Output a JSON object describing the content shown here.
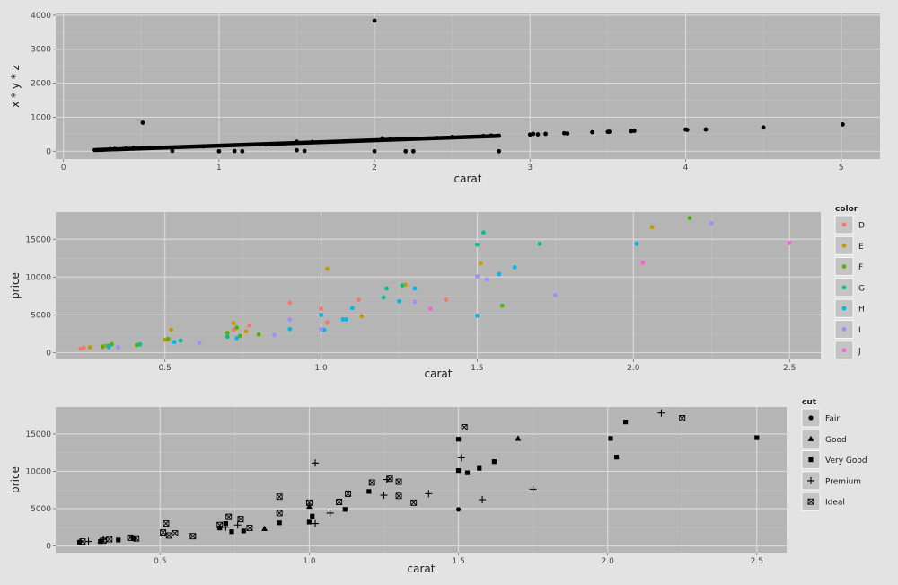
{
  "chart_data": [
    {
      "type": "scatter",
      "xlabel": "carat",
      "ylabel": "x * y * z",
      "xlim": [
        -0.05,
        5.25
      ],
      "ylim": [
        -230,
        4050
      ],
      "xticks": [
        0,
        1,
        2,
        3,
        4,
        5
      ],
      "yticks": [
        0,
        1000,
        2000,
        3000,
        4000
      ],
      "grid": true,
      "point_color": "#000000",
      "trend": {
        "x": [
          0.2,
          2.8
        ],
        "y": [
          35,
          450
        ]
      },
      "points": [
        [
          0.51,
          840
        ],
        [
          2.0,
          3840
        ],
        [
          5.01,
          790
        ],
        [
          0.7,
          10
        ],
        [
          1.0,
          0
        ],
        [
          1.1,
          5
        ],
        [
          1.15,
          0
        ],
        [
          1.5,
          30
        ],
        [
          1.55,
          10
        ],
        [
          2.0,
          0
        ],
        [
          2.2,
          0
        ],
        [
          2.25,
          0
        ],
        [
          2.8,
          0
        ],
        [
          1.5,
          280
        ],
        [
          1.6,
          270
        ],
        [
          2.05,
          380
        ],
        [
          2.1,
          350
        ],
        [
          2.4,
          390
        ],
        [
          2.5,
          420
        ],
        [
          2.7,
          450
        ],
        [
          2.75,
          460
        ],
        [
          2.8,
          455
        ],
        [
          3.0,
          490
        ],
        [
          3.02,
          510
        ],
        [
          3.05,
          495
        ],
        [
          3.1,
          510
        ],
        [
          3.22,
          530
        ],
        [
          3.24,
          520
        ],
        [
          3.4,
          560
        ],
        [
          3.5,
          570
        ],
        [
          3.51,
          575
        ],
        [
          3.65,
          590
        ],
        [
          3.67,
          600
        ],
        [
          4.0,
          640
        ],
        [
          4.01,
          630
        ],
        [
          4.13,
          640
        ],
        [
          4.5,
          700
        ],
        [
          0.25,
          40
        ],
        [
          0.3,
          60
        ],
        [
          0.33,
          70
        ],
        [
          0.4,
          80
        ],
        [
          0.45,
          90
        ],
        [
          0.9,
          140
        ],
        [
          1.3,
          200
        ],
        [
          1.8,
          290
        ]
      ]
    },
    {
      "type": "scatter",
      "xlabel": "carat",
      "ylabel": "price",
      "xlim": [
        0.15,
        2.6
      ],
      "ylim": [
        -900,
        18600
      ],
      "xticks": [
        "0.5",
        "1.0",
        "1.5",
        "2.0",
        "2.5"
      ],
      "xtick_values": [
        0.5,
        1.0,
        1.5,
        2.0,
        2.5
      ],
      "yticks": [
        0,
        5000,
        10000,
        15000
      ],
      "grid": true,
      "legend": {
        "title": "color",
        "placement": "right",
        "items": [
          {
            "label": "D",
            "color": "#f8766d"
          },
          {
            "label": "E",
            "color": "#c49a00"
          },
          {
            "label": "F",
            "color": "#53b400"
          },
          {
            "label": "G",
            "color": "#00c094"
          },
          {
            "label": "H",
            "color": "#00b6eb"
          },
          {
            "label": "I",
            "color": "#a58aff"
          },
          {
            "label": "J",
            "color": "#fb61d7"
          }
        ]
      },
      "series": [
        {
          "name": "D",
          "points": [
            [
              0.23,
              500
            ],
            [
              0.24,
              650
            ],
            [
              0.3,
              700
            ],
            [
              0.9,
              6600
            ],
            [
              1.0,
              5800
            ],
            [
              1.02,
              4000
            ],
            [
              1.12,
              7000
            ],
            [
              1.4,
              7000
            ],
            [
              0.77,
              3600
            ],
            [
              0.72,
              3000
            ]
          ]
        },
        {
          "name": "E",
          "points": [
            [
              0.26,
              700
            ],
            [
              0.31,
              900
            ],
            [
              0.5,
              1700
            ],
            [
              0.52,
              3000
            ],
            [
              0.72,
              3900
            ],
            [
              1.02,
              11100
            ],
            [
              1.13,
              4800
            ],
            [
              1.27,
              9000
            ],
            [
              1.51,
              11800
            ],
            [
              2.06,
              16600
            ],
            [
              0.76,
              2800
            ]
          ]
        },
        {
          "name": "F",
          "points": [
            [
              0.3,
              800
            ],
            [
              0.33,
              1100
            ],
            [
              0.41,
              1000
            ],
            [
              0.51,
              1800
            ],
            [
              0.7,
              2600
            ],
            [
              0.73,
              3300
            ],
            [
              0.74,
              2200
            ],
            [
              0.8,
              2400
            ],
            [
              1.58,
              6200
            ],
            [
              2.18,
              17800
            ]
          ]
        },
        {
          "name": "G",
          "points": [
            [
              0.32,
              900
            ],
            [
              0.42,
              1100
            ],
            [
              0.55,
              1600
            ],
            [
              0.7,
              2100
            ],
            [
              1.2,
              7300
            ],
            [
              1.21,
              8500
            ],
            [
              1.26,
              8900
            ],
            [
              1.52,
              15900
            ],
            [
              1.5,
              14300
            ],
            [
              1.7,
              14400
            ]
          ]
        },
        {
          "name": "H",
          "points": [
            [
              0.32,
              700
            ],
            [
              0.53,
              1400
            ],
            [
              0.73,
              1900
            ],
            [
              0.9,
              3100
            ],
            [
              1.0,
              5000
            ],
            [
              1.01,
              3000
            ],
            [
              1.08,
              4400
            ],
            [
              1.07,
              4400
            ],
            [
              1.1,
              5900
            ],
            [
              1.25,
              6800
            ],
            [
              1.3,
              8500
            ],
            [
              1.5,
              4900
            ],
            [
              1.57,
              10400
            ],
            [
              1.62,
              11300
            ],
            [
              2.01,
              14400
            ]
          ]
        },
        {
          "name": "I",
          "points": [
            [
              0.35,
              700
            ],
            [
              0.61,
              1300
            ],
            [
              0.9,
              4400
            ],
            [
              1.0,
              3100
            ],
            [
              1.3,
              6700
            ],
            [
              1.5,
              10100
            ],
            [
              1.53,
              9700
            ],
            [
              1.75,
              7600
            ],
            [
              2.25,
              17100
            ],
            [
              0.85,
              2300
            ]
          ]
        },
        {
          "name": "J",
          "points": [
            [
              1.35,
              5800
            ],
            [
              2.03,
              11900
            ],
            [
              2.5,
              14500
            ]
          ]
        }
      ]
    },
    {
      "type": "scatter",
      "xlabel": "carat",
      "ylabel": "price",
      "xlim": [
        0.15,
        2.6
      ],
      "ylim": [
        -900,
        18600
      ],
      "xticks": [
        "0.5",
        "1.0",
        "1.5",
        "2.0",
        "2.5"
      ],
      "xtick_values": [
        0.5,
        1.0,
        1.5,
        2.0,
        2.5
      ],
      "yticks": [
        0,
        5000,
        10000,
        15000
      ],
      "grid": true,
      "legend": {
        "title": "cut",
        "placement": "right",
        "items": [
          {
            "label": "Fair",
            "shape": "circle"
          },
          {
            "label": "Good",
            "shape": "triangle"
          },
          {
            "label": "Very Good",
            "shape": "square"
          },
          {
            "label": "Premium",
            "shape": "plus"
          },
          {
            "label": "Ideal",
            "shape": "boxx"
          }
        ]
      },
      "series": [
        {
          "name": "Fair",
          "points": [
            [
              1.5,
              4900
            ]
          ]
        },
        {
          "name": "Good",
          "points": [
            [
              0.85,
              2300
            ],
            [
              1.0,
              5300
            ],
            [
              1.7,
              14400
            ],
            [
              0.3,
              700
            ]
          ]
        },
        {
          "name": "Very Good",
          "points": [
            [
              0.23,
              500
            ],
            [
              0.3,
              600
            ],
            [
              0.36,
              800
            ],
            [
              0.7,
              2400
            ],
            [
              0.72,
              3000
            ],
            [
              0.74,
              1900
            ],
            [
              0.78,
              2000
            ],
            [
              1.0,
              3200
            ],
            [
              1.01,
              4000
            ],
            [
              1.12,
              4900
            ],
            [
              1.2,
              7300
            ],
            [
              1.5,
              10100
            ],
            [
              1.5,
              14300
            ],
            [
              1.53,
              9800
            ],
            [
              1.57,
              10400
            ],
            [
              1.62,
              11300
            ],
            [
              2.01,
              14400
            ],
            [
              2.03,
              11900
            ],
            [
              2.06,
              16600
            ],
            [
              2.5,
              14500
            ],
            [
              0.9,
              3100
            ],
            [
              0.41,
              1000
            ]
          ]
        },
        {
          "name": "Premium",
          "points": [
            [
              0.26,
              600
            ],
            [
              0.31,
              900
            ],
            [
              0.72,
              2500
            ],
            [
              0.76,
              2800
            ],
            [
              1.02,
              11100
            ],
            [
              1.02,
              3000
            ],
            [
              1.07,
              4400
            ],
            [
              1.25,
              6800
            ],
            [
              1.26,
              8900
            ],
            [
              1.4,
              7000
            ],
            [
              1.51,
              11800
            ],
            [
              1.58,
              6200
            ],
            [
              1.75,
              7600
            ],
            [
              2.18,
              17800
            ]
          ]
        },
        {
          "name": "Ideal",
          "points": [
            [
              0.24,
              600
            ],
            [
              0.31,
              700
            ],
            [
              0.33,
              900
            ],
            [
              0.4,
              1100
            ],
            [
              0.42,
              1000
            ],
            [
              0.51,
              1800
            ],
            [
              0.52,
              3000
            ],
            [
              0.53,
              1400
            ],
            [
              0.55,
              1700
            ],
            [
              0.61,
              1300
            ],
            [
              0.73,
              3900
            ],
            [
              0.77,
              3600
            ],
            [
              0.8,
              2400
            ],
            [
              0.9,
              6600
            ],
            [
              0.9,
              4400
            ],
            [
              1.0,
              5800
            ],
            [
              1.1,
              5900
            ],
            [
              1.13,
              7000
            ],
            [
              1.21,
              8500
            ],
            [
              1.27,
              9000
            ],
            [
              1.3,
              8600
            ],
            [
              1.3,
              6700
            ],
            [
              1.35,
              5800
            ],
            [
              1.52,
              15900
            ],
            [
              2.25,
              17100
            ],
            [
              0.7,
              2800
            ]
          ]
        }
      ]
    }
  ]
}
